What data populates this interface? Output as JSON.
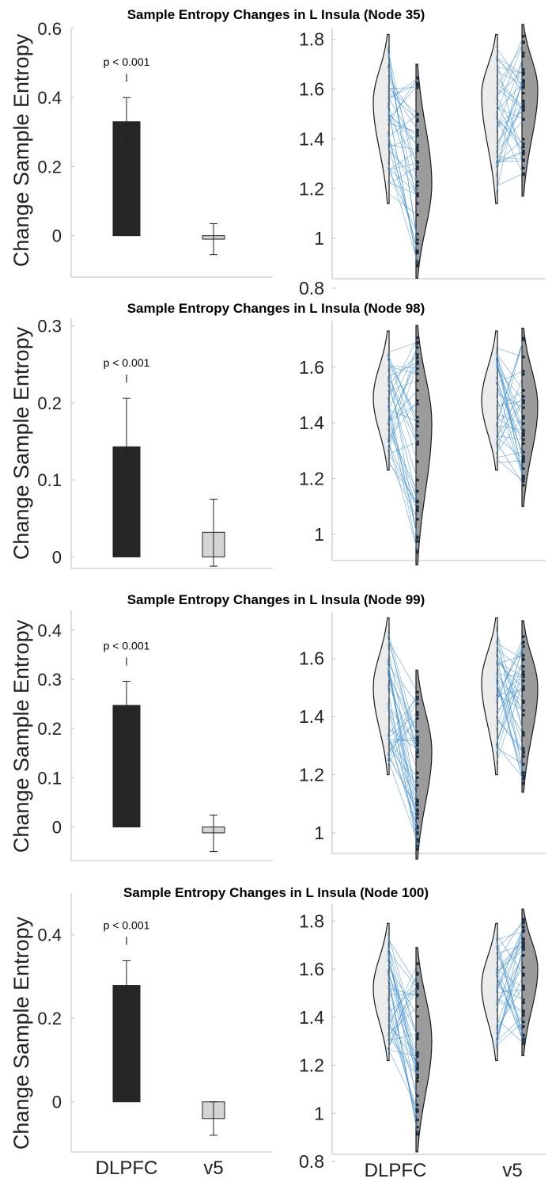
{
  "x_categories": [
    "DLPFC",
    "v5"
  ],
  "chart_data": [
    {
      "type": "bar",
      "title": "Sample Entropy Changes in L Insula (Node 35)",
      "ylabel": "Change Sample Entropy",
      "categories": [
        "DLPFC",
        "v5"
      ],
      "values": [
        0.33,
        -0.01
      ],
      "error_low": [
        0.265,
        -0.055
      ],
      "error_high": [
        0.4,
        0.035
      ],
      "bar_colors": [
        "#262626",
        "#d4d4d4"
      ],
      "yticks": [
        "0",
        "0.2",
        "0.4",
        "0.6"
      ],
      "ylim": [
        -0.12,
        0.6
      ],
      "annotation": "p < 0.001",
      "violin": {
        "type": "violin",
        "yticks": [
          "0.8",
          "1",
          "1.2",
          "1.4",
          "1.6",
          "1.8"
        ],
        "ylim": [
          0.8,
          1.85
        ],
        "groups": [
          {
            "category": "DLPFC",
            "pre": {
              "min": 1.14,
              "max": 1.82,
              "median": 1.55
            },
            "post": {
              "min": 0.84,
              "max": 1.7,
              "median": 1.22
            }
          },
          {
            "category": "v5",
            "pre": {
              "min": 1.14,
              "max": 1.82,
              "median": 1.58
            },
            "post": {
              "min": 1.17,
              "max": 1.86,
              "median": 1.6
            }
          }
        ]
      }
    },
    {
      "type": "bar",
      "title": "Sample Entropy Changes in L Insula (Node 98)",
      "ylabel": "Change Sample Entropy",
      "categories": [
        "DLPFC",
        "v5"
      ],
      "values": [
        0.143,
        0.032
      ],
      "error_low": [
        0.08,
        -0.012
      ],
      "error_high": [
        0.206,
        0.075
      ],
      "bar_colors": [
        "#262626",
        "#d4d4d4"
      ],
      "yticks": [
        "0",
        "0.1",
        "0.2",
        "0.3"
      ],
      "ylim": [
        -0.015,
        0.31
      ],
      "annotation": "p < 0.001",
      "violin": {
        "type": "violin",
        "yticks": [
          "1",
          "1.2",
          "1.4",
          "1.6"
        ],
        "ylim": [
          0.88,
          1.75
        ],
        "groups": [
          {
            "category": "DLPFC",
            "pre": {
              "min": 1.23,
              "max": 1.73,
              "median": 1.49
            },
            "post": {
              "min": 0.89,
              "max": 1.75,
              "median": 1.4
            }
          },
          {
            "category": "v5",
            "pre": {
              "min": 1.23,
              "max": 1.73,
              "median": 1.48
            },
            "post": {
              "min": 1.1,
              "max": 1.74,
              "median": 1.46
            }
          }
        ]
      }
    },
    {
      "type": "bar",
      "title": "Sample Entropy Changes in L Insula (Node 99)",
      "ylabel": "Change Sample Entropy",
      "categories": [
        "DLPFC",
        "v5"
      ],
      "values": [
        0.247,
        -0.012
      ],
      "error_low": [
        0.198,
        -0.05
      ],
      "error_high": [
        0.296,
        0.024
      ],
      "bar_colors": [
        "#262626",
        "#d4d4d4"
      ],
      "yticks": [
        "0",
        "0.1",
        "0.2",
        "0.3",
        "0.4"
      ],
      "ylim": [
        -0.07,
        0.44
      ],
      "annotation": "p < 0.001",
      "violin": {
        "type": "violin",
        "yticks": [
          "1",
          "1.2",
          "1.4",
          "1.6"
        ],
        "ylim": [
          0.91,
          1.76
        ],
        "groups": [
          {
            "category": "DLPFC",
            "pre": {
              "min": 1.2,
              "max": 1.74,
              "median": 1.5
            },
            "post": {
              "min": 0.91,
              "max": 1.56,
              "median": 1.28
            }
          },
          {
            "category": "v5",
            "pre": {
              "min": 1.2,
              "max": 1.74,
              "median": 1.52
            },
            "post": {
              "min": 1.14,
              "max": 1.73,
              "median": 1.5
            }
          }
        ]
      }
    },
    {
      "type": "bar",
      "title": "Sample Entropy Changes in L Insula (Node 100)",
      "ylabel": "Change Sample Entropy",
      "categories": [
        "DLPFC",
        "v5"
      ],
      "values": [
        0.279,
        -0.04
      ],
      "error_low": [
        0.22,
        -0.08
      ],
      "error_high": [
        0.338,
        0.0
      ],
      "bar_colors": [
        "#262626",
        "#d4d4d4"
      ],
      "yticks": [
        "0",
        "0.2",
        "0.4"
      ],
      "ylim": [
        -0.12,
        0.5
      ],
      "annotation": "p < 0.001",
      "violin": {
        "type": "violin",
        "yticks": [
          "0.8",
          "1",
          "1.2",
          "1.4",
          "1.6",
          "1.8"
        ],
        "ylim": [
          0.8,
          1.9
        ],
        "groups": [
          {
            "category": "DLPFC",
            "pre": {
              "min": 1.22,
              "max": 1.79,
              "median": 1.52
            },
            "post": {
              "min": 0.84,
              "max": 1.69,
              "median": 1.3
            }
          },
          {
            "category": "v5",
            "pre": {
              "min": 1.22,
              "max": 1.79,
              "median": 1.53
            },
            "post": {
              "min": 1.24,
              "max": 1.85,
              "median": 1.6
            }
          }
        ]
      }
    }
  ]
}
